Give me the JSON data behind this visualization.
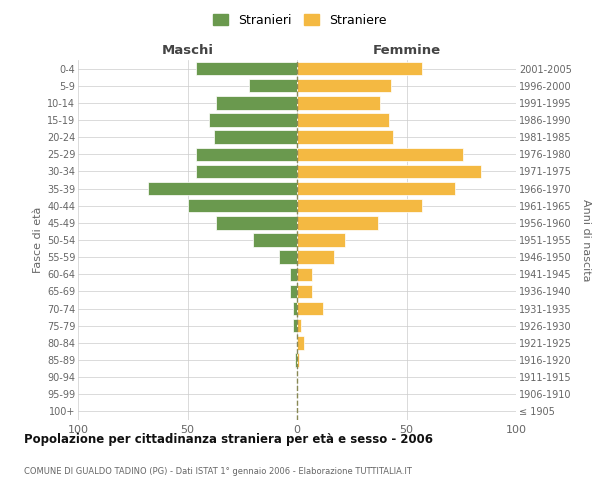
{
  "age_groups": [
    "100+",
    "95-99",
    "90-94",
    "85-89",
    "80-84",
    "75-79",
    "70-74",
    "65-69",
    "60-64",
    "55-59",
    "50-54",
    "45-49",
    "40-44",
    "35-39",
    "30-34",
    "25-29",
    "20-24",
    "15-19",
    "10-14",
    "5-9",
    "0-4"
  ],
  "birth_years": [
    "≤ 1905",
    "1906-1910",
    "1911-1915",
    "1916-1920",
    "1921-1925",
    "1926-1930",
    "1931-1935",
    "1936-1940",
    "1941-1945",
    "1946-1950",
    "1951-1955",
    "1956-1960",
    "1961-1965",
    "1966-1970",
    "1971-1975",
    "1976-1980",
    "1981-1985",
    "1986-1990",
    "1991-1995",
    "1996-2000",
    "2001-2005"
  ],
  "maschi": [
    0,
    0,
    0,
    1,
    0,
    2,
    2,
    3,
    3,
    8,
    20,
    37,
    50,
    68,
    46,
    46,
    38,
    40,
    37,
    22,
    46
  ],
  "femmine": [
    0,
    0,
    0,
    1,
    3,
    2,
    12,
    7,
    7,
    17,
    22,
    37,
    57,
    72,
    84,
    76,
    44,
    42,
    38,
    43,
    57
  ],
  "maschi_color": "#6a994e",
  "femmine_color": "#f4b942",
  "bar_edge_color": "white",
  "grid_color": "#cccccc",
  "bg_color": "#ffffff",
  "title": "Popolazione per cittadinanza straniera per età e sesso - 2006",
  "subtitle": "COMUNE DI GUALDO TADINO (PG) - Dati ISTAT 1° gennaio 2006 - Elaborazione TUTTITALIA.IT",
  "left_label": "Maschi",
  "right_label": "Femmine",
  "ylabel_left": "Fasce di età",
  "ylabel_right": "Anni di nascita",
  "legend_maschi": "Stranieri",
  "legend_femmine": "Straniere",
  "xlim": 100,
  "dashed_line_color": "#888855"
}
